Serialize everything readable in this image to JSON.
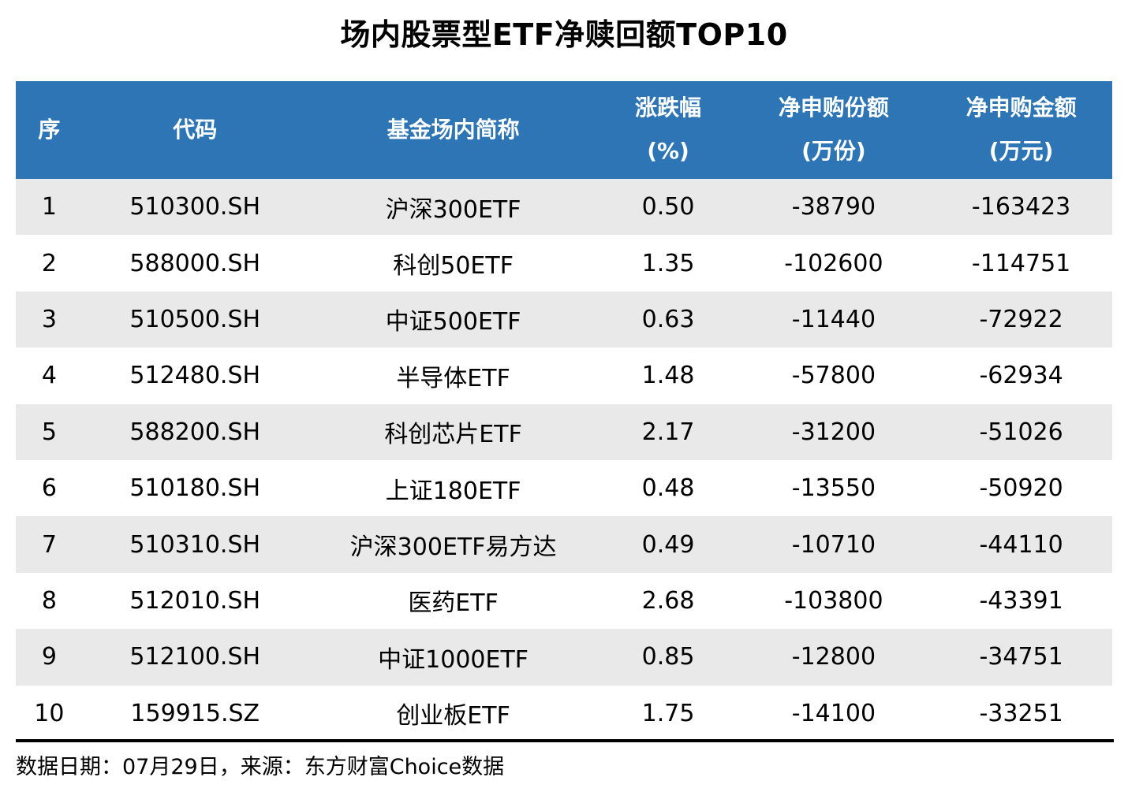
{
  "title": "场内股票型ETF净赎回额TOP10",
  "table": {
    "header": [
      {
        "label": "序",
        "sublabel": ""
      },
      {
        "label": "代码",
        "sublabel": ""
      },
      {
        "label": "基金场内简称",
        "sublabel": ""
      },
      {
        "label": "涨跌幅",
        "sublabel": "(%)"
      },
      {
        "label": "净申购份额",
        "sublabel": "(万份)"
      },
      {
        "label": "净申购金额",
        "sublabel": "(万元)"
      }
    ],
    "rows": [
      [
        "1",
        "510300.SH",
        "沪深300ETF",
        "0.50",
        "-38790",
        "-163423"
      ],
      [
        "2",
        "588000.SH",
        "科创50ETF",
        "1.35",
        "-102600",
        "-114751"
      ],
      [
        "3",
        "510500.SH",
        "中证500ETF",
        "0.63",
        "-11440",
        "-72922"
      ],
      [
        "4",
        "512480.SH",
        "半导体ETF",
        "1.48",
        "-57800",
        "-62934"
      ],
      [
        "5",
        "588200.SH",
        "科创芯片ETF",
        "2.17",
        "-31200",
        "-51026"
      ],
      [
        "6",
        "510180.SH",
        "上证180ETF",
        "0.48",
        "-13550",
        "-50920"
      ],
      [
        "7",
        "510310.SH",
        "沪深300ETF易方达",
        "0.49",
        "-10710",
        "-44110"
      ],
      [
        "8",
        "512010.SH",
        "医药ETF",
        "2.68",
        "-103800",
        "-43391"
      ],
      [
        "9",
        "512100.SH",
        "中证1000ETF",
        "0.85",
        "-12800",
        "-34751"
      ],
      [
        "10",
        "159915.SZ",
        "创业板ETF",
        "1.75",
        "-14100",
        "-33251"
      ]
    ]
  },
  "footer": {
    "text": "数据日期：07月29日，来源：东方财富Choice数据"
  },
  "colors": {
    "header_bg": "#2E75B6",
    "header_text": "#FFFFFF",
    "row_alt_bg": "#E9E9E9",
    "row_bg": "#FFFFFF",
    "text": "#000000"
  },
  "chart_data": {
    "type": "table",
    "title": "场内股票型ETF净赎回额TOP10",
    "columns": [
      "序",
      "代码",
      "基金场内简称",
      "涨跌幅(%)",
      "净申购份额(万份)",
      "净申购金额(万元)"
    ],
    "rows": [
      [
        "1",
        "510300.SH",
        "沪深300ETF",
        0.5,
        -38790,
        -163423
      ],
      [
        "2",
        "588000.SH",
        "科创50ETF",
        1.35,
        -102600,
        -114751
      ],
      [
        "3",
        "510500.SH",
        "中证500ETF",
        0.63,
        -11440,
        -72922
      ],
      [
        "4",
        "512480.SH",
        "半导体ETF",
        1.48,
        -57800,
        -62934
      ],
      [
        "5",
        "588200.SH",
        "科创芯片ETF",
        2.17,
        -31200,
        -51026
      ],
      [
        "6",
        "510180.SH",
        "上证180ETF",
        0.48,
        -13550,
        -50920
      ],
      [
        "7",
        "510310.SH",
        "沪深300ETF易方达",
        0.49,
        -10710,
        -44110
      ],
      [
        "8",
        "512010.SH",
        "医药ETF",
        2.68,
        -103800,
        -43391
      ],
      [
        "9",
        "512100.SH",
        "中证1000ETF",
        0.85,
        -12800,
        -34751
      ],
      [
        "10",
        "159915.SZ",
        "创业板ETF",
        1.75,
        -14100,
        -33251
      ]
    ],
    "source_note": "数据日期：07月29日，来源：东方财富Choice数据"
  }
}
